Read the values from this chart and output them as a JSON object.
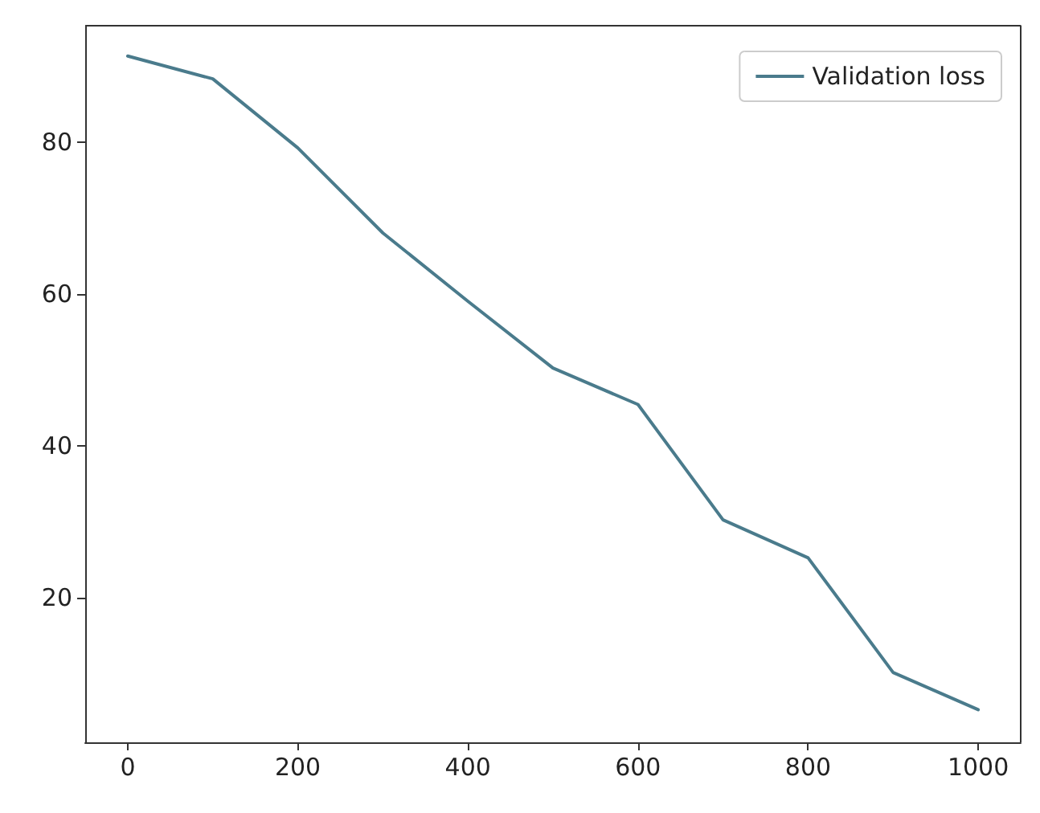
{
  "chart_data": {
    "type": "line",
    "x": [
      0,
      100,
      200,
      300,
      400,
      500,
      600,
      700,
      800,
      900,
      1000
    ],
    "series": [
      {
        "name": "Validation loss",
        "color": "#4a7b8c",
        "values": [
          91.3,
          88.3,
          79.2,
          68,
          59,
          50.2,
          45.4,
          30.2,
          25.2,
          10.1,
          5.2
        ]
      }
    ],
    "xlim": [
      -50,
      1050
    ],
    "xticks": [
      0,
      200,
      400,
      600,
      800,
      1000
    ],
    "ylim": [
      0.9,
      95.3
    ],
    "yticks": [
      20,
      40,
      60,
      80
    ],
    "grid": false,
    "legend": "top right",
    "marker": "none",
    "line_style": "solid"
  }
}
